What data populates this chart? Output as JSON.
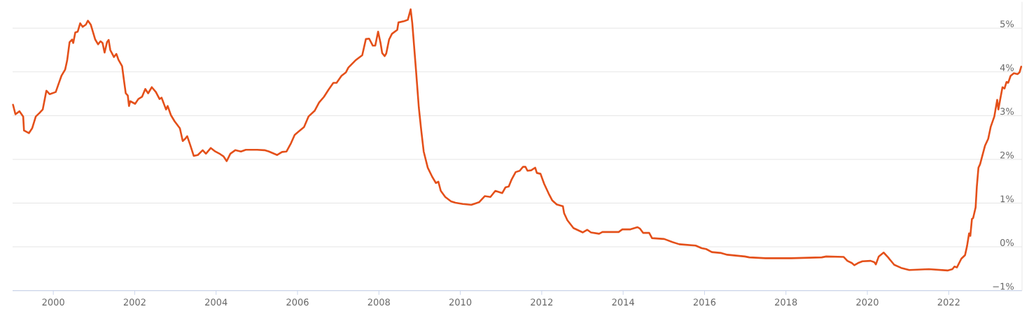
{
  "chart_data": {
    "type": "line",
    "x": [
      1999.01,
      1999.07,
      1999.17,
      1999.26,
      1999.28,
      1999.4,
      1999.48,
      1999.57,
      1999.66,
      1999.74,
      1999.83,
      1999.91,
      2000.06,
      2000.12,
      2000.2,
      2000.29,
      2000.34,
      2000.4,
      2000.46,
      2000.49,
      2000.54,
      2000.6,
      2000.66,
      2000.72,
      2000.8,
      2000.85,
      2000.92,
      2001.03,
      2001.1,
      2001.16,
      2001.21,
      2001.26,
      2001.32,
      2001.36,
      2001.4,
      2001.49,
      2001.55,
      2001.6,
      2001.69,
      2001.74,
      2001.78,
      2001.83,
      2001.86,
      2001.89,
      2002.01,
      2002.09,
      2002.18,
      2002.26,
      2002.33,
      2002.42,
      2002.52,
      2002.61,
      2002.66,
      2002.77,
      2002.81,
      2002.89,
      2002.98,
      2003.11,
      2003.18,
      2003.24,
      2003.29,
      2003.36,
      2003.45,
      2003.55,
      2003.67,
      2003.75,
      2003.87,
      2003.98,
      2004.1,
      2004.18,
      2004.26,
      2004.35,
      2004.47,
      2004.61,
      2004.73,
      2004.9,
      2005.01,
      2005.19,
      2005.3,
      2005.5,
      2005.62,
      2005.73,
      2005.84,
      2005.93,
      2006.02,
      2006.16,
      2006.27,
      2006.42,
      2006.53,
      2006.65,
      2006.76,
      2006.88,
      2006.96,
      2007.08,
      2007.19,
      2007.25,
      2007.42,
      2007.59,
      2007.68,
      2007.76,
      2007.85,
      2007.91,
      2007.98,
      2008.04,
      2008.08,
      2008.14,
      2008.18,
      2008.25,
      2008.32,
      2008.45,
      2008.48,
      2008.62,
      2008.71,
      2008.78,
      2008.82,
      2008.91,
      2008.98,
      2009.04,
      2009.1,
      2009.2,
      2009.31,
      2009.4,
      2009.46,
      2009.52,
      2009.63,
      2009.77,
      2009.88,
      2010.06,
      2010.27,
      2010.46,
      2010.6,
      2010.74,
      2010.86,
      2011.03,
      2011.11,
      2011.19,
      2011.26,
      2011.36,
      2011.46,
      2011.54,
      2011.6,
      2011.65,
      2011.74,
      2011.84,
      2011.88,
      2011.97,
      2012.06,
      2012.17,
      2012.26,
      2012.37,
      2012.52,
      2012.55,
      2012.63,
      2012.78,
      2013.01,
      2013.12,
      2013.21,
      2013.41,
      2013.49,
      2013.89,
      2013.98,
      2014.18,
      2014.35,
      2014.41,
      2014.49,
      2014.64,
      2014.71,
      2015.01,
      2015.21,
      2015.38,
      2015.78,
      2015.93,
      2016.04,
      2016.18,
      2016.41,
      2016.56,
      2016.99,
      2017.1,
      2017.5,
      2018.13,
      2018.88,
      2018.99,
      2019.42,
      2019.51,
      2019.62,
      2019.68,
      2019.77,
      2019.88,
      2020.08,
      2020.17,
      2020.21,
      2020.28,
      2020.4,
      2020.51,
      2020.66,
      2020.83,
      2021.03,
      2021.51,
      2021.97,
      2022.09,
      2022.14,
      2022.2,
      2022.31,
      2022.4,
      2022.45,
      2022.5,
      2022.53,
      2022.57,
      2022.6,
      2022.66,
      2022.69,
      2022.73,
      2022.77,
      2022.89,
      2022.97,
      2023.03,
      2023.12,
      2023.19,
      2023.22,
      2023.26,
      2023.32,
      2023.37,
      2023.42,
      2023.46,
      2023.52,
      2023.6,
      2023.69,
      2023.74,
      2023.78
    ],
    "values": [
      3.25,
      3.03,
      3.1,
      2.98,
      2.66,
      2.6,
      2.71,
      2.98,
      3.06,
      3.14,
      3.57,
      3.49,
      3.54,
      3.7,
      3.91,
      4.05,
      4.26,
      4.68,
      4.74,
      4.66,
      4.9,
      4.92,
      5.11,
      5.03,
      5.08,
      5.17,
      5.08,
      4.74,
      4.63,
      4.7,
      4.66,
      4.44,
      4.68,
      4.73,
      4.5,
      4.34,
      4.41,
      4.28,
      4.13,
      3.78,
      3.51,
      3.46,
      3.22,
      3.33,
      3.27,
      3.38,
      3.43,
      3.61,
      3.51,
      3.65,
      3.54,
      3.38,
      3.41,
      3.14,
      3.22,
      3.01,
      2.87,
      2.71,
      2.42,
      2.47,
      2.53,
      2.34,
      2.08,
      2.1,
      2.21,
      2.13,
      2.26,
      2.18,
      2.12,
      2.07,
      1.96,
      2.13,
      2.21,
      2.18,
      2.22,
      2.22,
      2.22,
      2.21,
      2.18,
      2.1,
      2.17,
      2.18,
      2.37,
      2.56,
      2.63,
      2.74,
      2.98,
      3.11,
      3.3,
      3.43,
      3.59,
      3.75,
      3.75,
      3.91,
      3.99,
      4.1,
      4.26,
      4.38,
      4.75,
      4.76,
      4.6,
      4.6,
      4.92,
      4.66,
      4.43,
      4.36,
      4.42,
      4.74,
      4.87,
      4.96,
      5.13,
      5.16,
      5.19,
      5.43,
      5.11,
      4.05,
      3.19,
      2.66,
      2.18,
      1.81,
      1.6,
      1.46,
      1.49,
      1.28,
      1.14,
      1.04,
      1.01,
      0.98,
      0.96,
      1.02,
      1.16,
      1.14,
      1.28,
      1.23,
      1.36,
      1.38,
      1.54,
      1.71,
      1.74,
      1.83,
      1.83,
      1.74,
      1.75,
      1.81,
      1.69,
      1.67,
      1.44,
      1.22,
      1.06,
      0.97,
      0.93,
      0.77,
      0.61,
      0.43,
      0.33,
      0.39,
      0.33,
      0.3,
      0.34,
      0.34,
      0.4,
      0.4,
      0.45,
      0.42,
      0.32,
      0.32,
      0.2,
      0.18,
      0.11,
      0.06,
      0.03,
      -0.03,
      -0.05,
      -0.12,
      -0.14,
      -0.18,
      -0.22,
      -0.24,
      -0.26,
      -0.26,
      -0.24,
      -0.22,
      -0.23,
      -0.32,
      -0.37,
      -0.42,
      -0.37,
      -0.33,
      -0.32,
      -0.35,
      -0.4,
      -0.22,
      -0.13,
      -0.24,
      -0.41,
      -0.48,
      -0.53,
      -0.51,
      -0.54,
      -0.51,
      -0.45,
      -0.47,
      -0.27,
      -0.19,
      0.02,
      0.31,
      0.25,
      0.64,
      0.66,
      0.9,
      1.38,
      1.81,
      1.89,
      2.31,
      2.47,
      2.74,
      2.98,
      3.36,
      3.14,
      3.35,
      3.65,
      3.62,
      3.77,
      3.75,
      3.91,
      3.97,
      3.95,
      3.99,
      4.12
    ],
    "color": "#e4501a",
    "xlim": [
      1999,
      2023.8
    ],
    "ylim": [
      -1,
      5.6
    ],
    "xticks": [
      2000,
      2002,
      2004,
      2006,
      2008,
      2010,
      2012,
      2014,
      2016,
      2018,
      2020,
      2022
    ],
    "yticks": [
      {
        "value": -1,
        "label": "−1%"
      },
      {
        "value": 0,
        "label": "0%"
      },
      {
        "value": 1,
        "label": "1%"
      },
      {
        "value": 2,
        "label": "2%"
      },
      {
        "value": 3,
        "label": "3%"
      },
      {
        "value": 4,
        "label": "4%"
      },
      {
        "value": 5,
        "label": "5%"
      }
    ],
    "grid": "y"
  }
}
